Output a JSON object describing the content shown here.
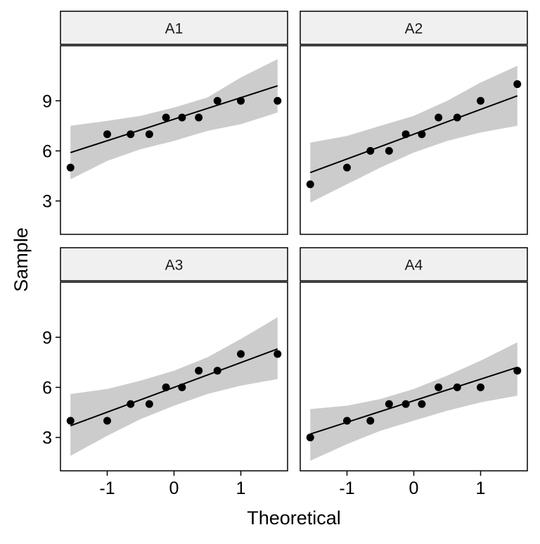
{
  "chart_data": {
    "type": "scatter",
    "subtype": "qq-plot",
    "xlabel": "Theoretical",
    "ylabel": "Sample",
    "xticks": [
      -1,
      0,
      1
    ],
    "xtick_labels": [
      "-1",
      "0",
      "1"
    ],
    "yticks": [
      3,
      6,
      9
    ],
    "ytick_labels": [
      "3",
      "6",
      "9"
    ],
    "xlim": [
      -1.7,
      1.7
    ],
    "ylim": [
      1.0,
      12.3
    ],
    "grid": false,
    "legend": "none",
    "colors": {
      "points": "#000000",
      "line": "#000000",
      "band": "#cccccc",
      "strip": "#f0f0f0",
      "border": "#000000"
    },
    "panels": [
      {
        "title": "A1",
        "x": [
          -1.55,
          -1.0,
          -0.65,
          -0.37,
          -0.12,
          0.12,
          0.37,
          0.65,
          1.0,
          1.55
        ],
        "y": [
          5,
          7,
          7,
          7,
          8,
          8,
          8,
          9,
          9,
          9
        ],
        "line": [
          [
            -1.55,
            5.9
          ],
          [
            1.55,
            9.9
          ]
        ],
        "band_upper": [
          [
            -1.55,
            7.5
          ],
          [
            -1.0,
            7.8
          ],
          [
            -0.5,
            8.1
          ],
          [
            0.0,
            8.6
          ],
          [
            0.5,
            9.2
          ],
          [
            1.0,
            10.4
          ],
          [
            1.55,
            11.5
          ]
        ],
        "band_lower": [
          [
            -1.55,
            4.3
          ],
          [
            -1.0,
            5.4
          ],
          [
            -0.5,
            6.1
          ],
          [
            0.0,
            6.6
          ],
          [
            0.5,
            7.2
          ],
          [
            1.0,
            7.6
          ],
          [
            1.55,
            8.3
          ]
        ]
      },
      {
        "title": "A2",
        "x": [
          -1.55,
          -1.0,
          -0.65,
          -0.37,
          -0.12,
          0.12,
          0.37,
          0.65,
          1.0,
          1.55
        ],
        "y": [
          4,
          5,
          6,
          6,
          7,
          7,
          8,
          8,
          9,
          10
        ],
        "line": [
          [
            -1.55,
            4.7
          ],
          [
            1.55,
            9.3
          ]
        ],
        "band_upper": [
          [
            -1.55,
            6.5
          ],
          [
            -1.0,
            6.9
          ],
          [
            -0.5,
            7.5
          ],
          [
            0.0,
            8.1
          ],
          [
            0.5,
            9.0
          ],
          [
            1.0,
            10.1
          ],
          [
            1.55,
            11.1
          ]
        ],
        "band_lower": [
          [
            -1.55,
            2.9
          ],
          [
            -1.0,
            4.0
          ],
          [
            -0.5,
            5.0
          ],
          [
            0.0,
            5.9
          ],
          [
            0.5,
            6.6
          ],
          [
            1.0,
            7.1
          ],
          [
            1.55,
            7.5
          ]
        ]
      },
      {
        "title": "A3",
        "x": [
          -1.55,
          -1.0,
          -0.65,
          -0.37,
          -0.12,
          0.12,
          0.37,
          0.65,
          1.0,
          1.55
        ],
        "y": [
          4,
          4,
          5,
          5,
          6,
          6,
          7,
          7,
          8,
          8
        ],
        "line": [
          [
            -1.55,
            3.7
          ],
          [
            1.55,
            8.3
          ]
        ],
        "band_upper": [
          [
            -1.55,
            5.6
          ],
          [
            -1.0,
            5.9
          ],
          [
            -0.5,
            6.4
          ],
          [
            0.0,
            7.0
          ],
          [
            0.5,
            7.8
          ],
          [
            1.0,
            8.9
          ],
          [
            1.55,
            10.2
          ]
        ],
        "band_lower": [
          [
            -1.55,
            1.9
          ],
          [
            -1.0,
            3.1
          ],
          [
            -0.5,
            4.1
          ],
          [
            0.0,
            4.9
          ],
          [
            0.5,
            5.6
          ],
          [
            1.0,
            6.1
          ],
          [
            1.55,
            6.5
          ]
        ]
      },
      {
        "title": "A4",
        "x": [
          -1.55,
          -1.0,
          -0.65,
          -0.37,
          -0.12,
          0.12,
          0.37,
          0.65,
          1.0,
          1.55
        ],
        "y": [
          3,
          4,
          4,
          5,
          5,
          5,
          6,
          6,
          6,
          7
        ],
        "line": [
          [
            -1.55,
            3.2
          ],
          [
            1.55,
            7.2
          ]
        ],
        "band_upper": [
          [
            -1.55,
            4.7
          ],
          [
            -1.0,
            4.9
          ],
          [
            -0.5,
            5.3
          ],
          [
            0.0,
            5.9
          ],
          [
            0.5,
            6.7
          ],
          [
            1.0,
            7.6
          ],
          [
            1.55,
            8.7
          ]
        ],
        "band_lower": [
          [
            -1.55,
            1.6
          ],
          [
            -1.0,
            2.6
          ],
          [
            -0.5,
            3.4
          ],
          [
            0.0,
            4.0
          ],
          [
            0.5,
            4.6
          ],
          [
            1.0,
            5.1
          ],
          [
            1.55,
            5.5
          ]
        ]
      }
    ]
  }
}
